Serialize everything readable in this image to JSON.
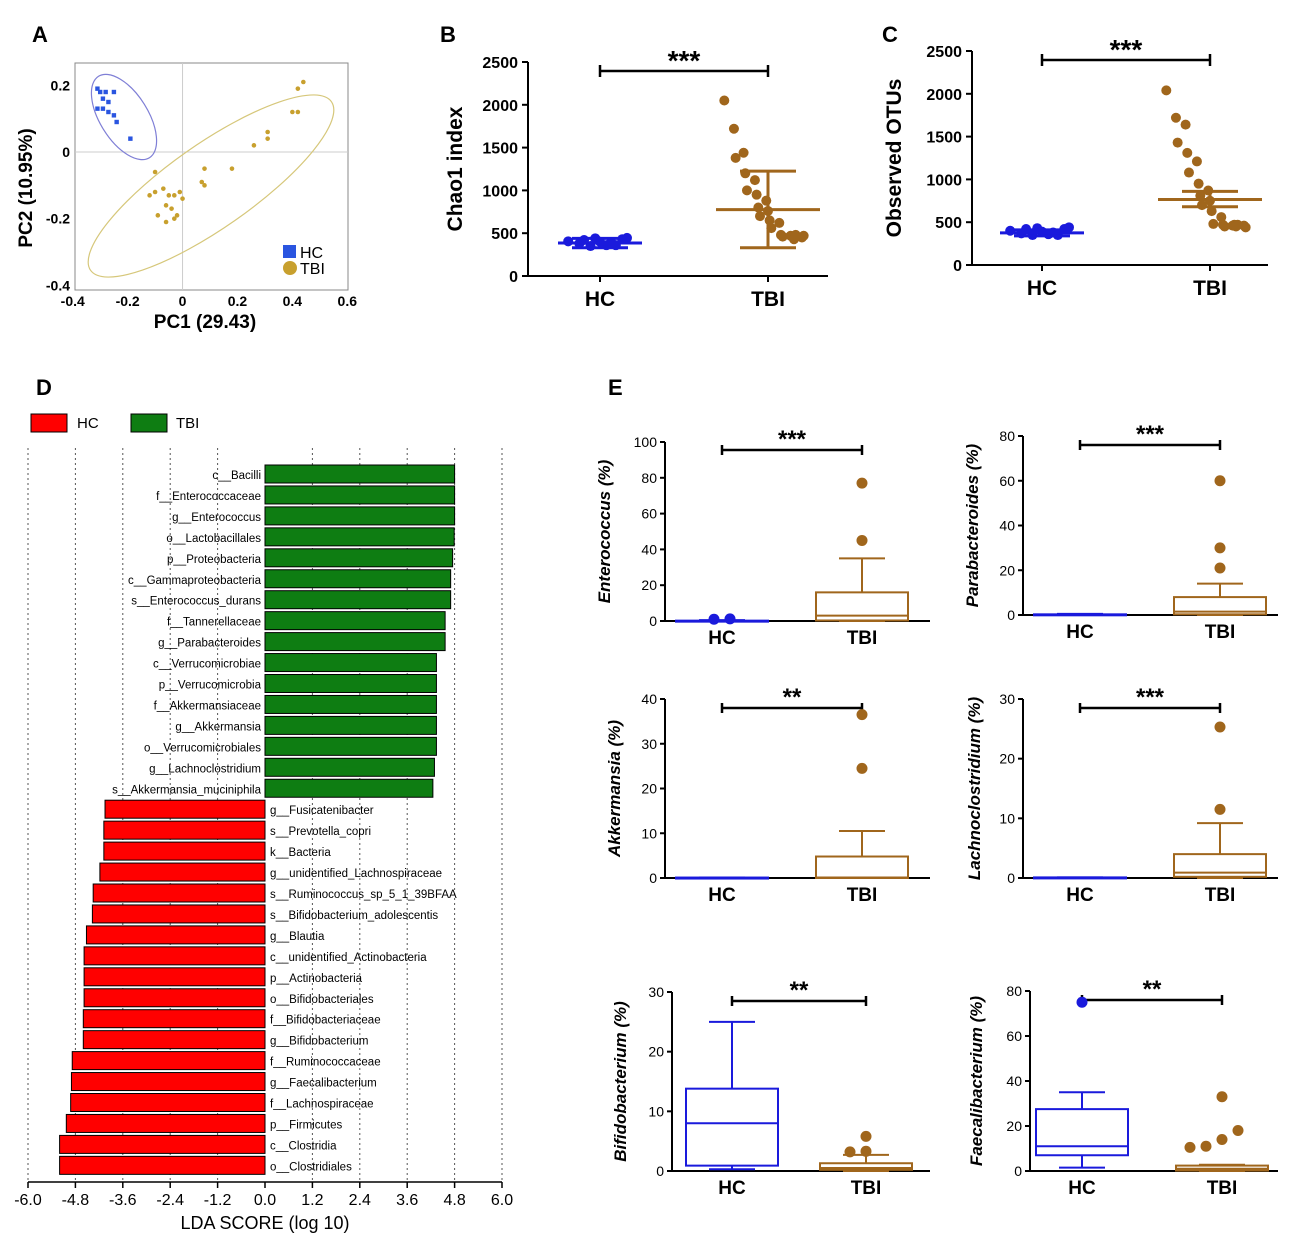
{
  "colors": {
    "hc": "#1a1adc",
    "tbi": "#a0661c",
    "hc_pca": "#2a55e0",
    "tbi_pca": "#c8a02e",
    "ellipse_hc": "#7f7fd6",
    "ellipse_tbi": "#d6c77a",
    "lda_hc": "#ff0000",
    "lda_tbi": "#0e7d12"
  },
  "panel_labels": {
    "a": "A",
    "b": "B",
    "c": "C",
    "d": "D",
    "e": "E"
  },
  "chart_data": [
    {
      "id": "pca",
      "type": "scatter",
      "xlabel": "PC1 (29.43)",
      "ylabel": "PC2 (10.95%)",
      "xlim": [
        -0.45,
        0.65
      ],
      "ylim": [
        -0.42,
        0.27
      ],
      "xticks": [
        "-0.4",
        "-0.2",
        "0",
        "0.2",
        "0.4",
        "0.6"
      ],
      "yticks": [
        "0.2",
        "0",
        "-0.2",
        "-0.4"
      ],
      "legend": [
        "HC",
        "TBI"
      ],
      "series": [
        {
          "name": "HC",
          "points": [
            [
              -0.31,
              0.19
            ],
            [
              -0.3,
              0.18
            ],
            [
              -0.28,
              0.18
            ],
            [
              -0.25,
              0.18
            ],
            [
              -0.29,
              0.16
            ],
            [
              -0.27,
              0.15
            ],
            [
              -0.31,
              0.13
            ],
            [
              -0.29,
              0.13
            ],
            [
              -0.27,
              0.12
            ],
            [
              -0.25,
              0.11
            ],
            [
              -0.24,
              0.09
            ],
            [
              -0.19,
              0.04
            ]
          ]
        },
        {
          "name": "TBI",
          "points": [
            [
              -0.1,
              -0.06
            ],
            [
              -0.12,
              -0.13
            ],
            [
              -0.1,
              -0.12
            ],
            [
              -0.07,
              -0.11
            ],
            [
              -0.05,
              -0.13
            ],
            [
              -0.03,
              -0.13
            ],
            [
              -0.01,
              -0.12
            ],
            [
              0.0,
              -0.14
            ],
            [
              -0.06,
              -0.16
            ],
            [
              -0.04,
              -0.17
            ],
            [
              -0.02,
              -0.19
            ],
            [
              -0.09,
              -0.19
            ],
            [
              -0.06,
              -0.21
            ],
            [
              -0.03,
              -0.2
            ],
            [
              0.07,
              -0.09
            ],
            [
              0.08,
              -0.1
            ],
            [
              0.08,
              -0.05
            ],
            [
              0.18,
              -0.05
            ],
            [
              0.26,
              0.02
            ],
            [
              0.31,
              0.06
            ],
            [
              0.31,
              0.04
            ],
            [
              0.4,
              0.12
            ],
            [
              0.42,
              0.12
            ],
            [
              0.42,
              0.19
            ],
            [
              0.44,
              0.21
            ]
          ]
        }
      ]
    },
    {
      "id": "chao1",
      "type": "scatter",
      "ylabel": "Chao1 index",
      "ylim": [
        0,
        2500
      ],
      "yticks": [
        0,
        500,
        1000,
        1500,
        2000,
        2500
      ],
      "categories": [
        "HC",
        "TBI"
      ],
      "significance": "***",
      "series": [
        {
          "name": "HC",
          "mean": 385,
          "err_low": 330,
          "err_high": 440,
          "points": [
            405,
            380,
            350,
            420,
            440,
            360,
            400,
            395,
            430,
            360,
            445
          ]
        },
        {
          "name": "TBI",
          "mean": 775,
          "err_low": 330,
          "err_high": 1225,
          "points": [
            2050,
            1720,
            1440,
            1380,
            1200,
            1120,
            1000,
            950,
            880,
            800,
            760,
            700,
            650,
            620,
            560,
            480,
            470,
            460,
            460,
            450,
            430,
            470,
            480
          ]
        }
      ]
    },
    {
      "id": "otus",
      "type": "scatter",
      "ylabel": "Observed OTUs",
      "ylim": [
        0,
        2500
      ],
      "yticks": [
        0,
        500,
        1000,
        1500,
        2000,
        2500
      ],
      "categories": [
        "HC",
        "TBI"
      ],
      "significance": "***",
      "series": [
        {
          "name": "HC",
          "mean": 375,
          "err_low": 340,
          "err_high": 410,
          "points": [
            400,
            370,
            350,
            420,
            430,
            360,
            390,
            380,
            420,
            350,
            440
          ]
        },
        {
          "name": "TBI",
          "mean": 765,
          "err_low": 680,
          "err_high": 860,
          "points": [
            2040,
            1720,
            1640,
            1430,
            1310,
            1210,
            1080,
            950,
            870,
            810,
            750,
            700,
            630,
            560,
            480,
            470,
            460,
            450,
            470,
            460,
            450,
            440,
            470
          ]
        }
      ]
    },
    {
      "id": "lda",
      "type": "bar",
      "orientation": "horizontal",
      "xlabel": "LDA SCORE (log 10)",
      "xlim": [
        -6.0,
        6.0
      ],
      "xticks": [
        "-6.0",
        "-4.8",
        "-3.6",
        "-2.4",
        "-1.2",
        "0.0",
        "1.2",
        "2.4",
        "3.6",
        "4.8",
        "6.0"
      ],
      "legend": [
        "HC",
        "TBI"
      ],
      "categories": [
        "c__Bacilli",
        "f__Enterococcaceae",
        "g__Enterococcus",
        "o__Lactobacillales",
        "p__Proteobacteria",
        "c__Gammaproteobacteria",
        "s__Enterococcus_durans",
        "f__Tannerellaceae",
        "g__Parabacteroides",
        "c__Verrucomicrobiae",
        "p__Verrucomicrobia",
        "f__Akkermansiaceae",
        "g__Akkermansia",
        "o__Verrucomicrobiales",
        "g__Lachnoclostridium",
        "s__Akkermansia_muciniphila",
        "g__Fusicatenibacter",
        "s__Prevotella_copri",
        "k__Bacteria",
        "g__unidentified_Lachnospiraceae",
        "s__Ruminococcus_sp_5_1_39BFAA",
        "s__Bifidobacterium_adolescentis",
        "g__Blautia",
        "c__unidentified_Actinobacteria",
        "p__Actinobacteria",
        "o__Bifidobacteriales",
        "f__Bifidobacteriaceae",
        "g__Bifidobacterium",
        "f__Ruminococcaceae",
        "g__Faecalibacterium",
        "f__Lachnospiraceae",
        "p__Firmicutes",
        "c__Clostridia",
        "o__Clostridiales"
      ],
      "values": [
        4.8,
        4.8,
        4.8,
        4.79,
        4.75,
        4.7,
        4.7,
        4.56,
        4.56,
        4.34,
        4.34,
        4.34,
        4.34,
        4.34,
        4.29,
        4.25,
        -4.05,
        -4.08,
        -4.08,
        -4.18,
        -4.35,
        -4.37,
        -4.52,
        -4.58,
        -4.58,
        -4.58,
        -4.6,
        -4.6,
        -4.88,
        -4.9,
        -4.92,
        -5.03,
        -5.2,
        -5.2
      ],
      "groups": [
        "TBI",
        "TBI",
        "TBI",
        "TBI",
        "TBI",
        "TBI",
        "TBI",
        "TBI",
        "TBI",
        "TBI",
        "TBI",
        "TBI",
        "TBI",
        "TBI",
        "TBI",
        "TBI",
        "HC",
        "HC",
        "HC",
        "HC",
        "HC",
        "HC",
        "HC",
        "HC",
        "HC",
        "HC",
        "HC",
        "HC",
        "HC",
        "HC",
        "HC",
        "HC",
        "HC",
        "HC"
      ]
    },
    {
      "id": "enterococcus",
      "type": "box",
      "ylabel": "Enterococcus (%)",
      "ylim": [
        0,
        100
      ],
      "yticks": [
        0,
        20,
        40,
        60,
        80,
        100
      ],
      "categories": [
        "HC",
        "TBI"
      ],
      "significance": "***",
      "series": [
        {
          "name": "HC",
          "whisker_low": 0,
          "q1": 0,
          "median": 0,
          "q3": 0.2,
          "whisker_high": 0.5,
          "outliers": [
            1.0,
            1.2
          ]
        },
        {
          "name": "TBI",
          "whisker_low": 0,
          "q1": 0.3,
          "median": 3,
          "q3": 16,
          "whisker_high": 35,
          "outliers": [
            45,
            77
          ]
        }
      ]
    },
    {
      "id": "parabacteroides",
      "type": "box",
      "ylabel": "Parabacteroides (%)",
      "ylim": [
        0,
        80
      ],
      "yticks": [
        0,
        20,
        40,
        60,
        80
      ],
      "categories": [
        "HC",
        "TBI"
      ],
      "significance": "***",
      "series": [
        {
          "name": "HC",
          "whisker_low": 0,
          "q1": 0,
          "median": 0,
          "q3": 0.3,
          "whisker_high": 0.5,
          "outliers": []
        },
        {
          "name": "TBI",
          "whisker_low": 0,
          "q1": 0.3,
          "median": 1.5,
          "q3": 8,
          "whisker_high": 14,
          "outliers": [
            21,
            30,
            60
          ]
        }
      ]
    },
    {
      "id": "akkermansia",
      "type": "box",
      "ylabel": "Akkermansia (%)",
      "ylim": [
        0,
        40
      ],
      "yticks": [
        0,
        10,
        20,
        30,
        40
      ],
      "categories": [
        "HC",
        "TBI"
      ],
      "significance": "**",
      "series": [
        {
          "name": "HC",
          "whisker_low": 0,
          "q1": 0,
          "median": 0,
          "q3": 0.1,
          "whisker_high": 0.1,
          "outliers": []
        },
        {
          "name": "TBI",
          "whisker_low": 0,
          "q1": 0,
          "median": 0.1,
          "q3": 4.8,
          "whisker_high": 10.5,
          "outliers": [
            24.5,
            36.5
          ]
        }
      ]
    },
    {
      "id": "lachnoclostridium",
      "type": "box",
      "ylabel": "Lachnoclostridium (%)",
      "ylim": [
        0,
        30
      ],
      "yticks": [
        0,
        10,
        20,
        30
      ],
      "categories": [
        "HC",
        "TBI"
      ],
      "significance": "***",
      "series": [
        {
          "name": "HC",
          "whisker_low": 0,
          "q1": 0,
          "median": 0,
          "q3": 0.1,
          "whisker_high": 0.1,
          "outliers": []
        },
        {
          "name": "TBI",
          "whisker_low": 0,
          "q1": 0.2,
          "median": 0.9,
          "q3": 4,
          "whisker_high": 9.2,
          "outliers": [
            11.5,
            25.3
          ]
        }
      ]
    },
    {
      "id": "bifidobacterium",
      "type": "box",
      "ylabel": "Bifidobacterium (%)",
      "ylim": [
        0,
        30
      ],
      "yticks": [
        0,
        10,
        20,
        30
      ],
      "categories": [
        "HC",
        "TBI"
      ],
      "significance": "**",
      "series": [
        {
          "name": "HC",
          "whisker_low": 0.3,
          "q1": 0.9,
          "median": 8,
          "q3": 13.8,
          "whisker_high": 25,
          "outliers": []
        },
        {
          "name": "TBI",
          "whisker_low": 0,
          "q1": 0.2,
          "median": 0.5,
          "q3": 1.3,
          "whisker_high": 2.7,
          "outliers": [
            3.2,
            3.3,
            5.8
          ]
        }
      ]
    },
    {
      "id": "faecalibacterium",
      "type": "box",
      "ylabel": "Faecalibacterium (%)",
      "ylim": [
        0,
        80
      ],
      "yticks": [
        0,
        20,
        40,
        60,
        80
      ],
      "categories": [
        "HC",
        "TBI"
      ],
      "significance": "**",
      "series": [
        {
          "name": "HC",
          "whisker_low": 1.5,
          "q1": 7,
          "median": 11,
          "q3": 27.5,
          "whisker_high": 35,
          "outliers": [
            75
          ]
        },
        {
          "name": "TBI",
          "whisker_low": 0,
          "q1": 0.2,
          "median": 1,
          "q3": 2.4,
          "whisker_high": 2.8,
          "outliers": [
            10.5,
            11,
            14,
            18,
            33
          ]
        }
      ]
    }
  ]
}
